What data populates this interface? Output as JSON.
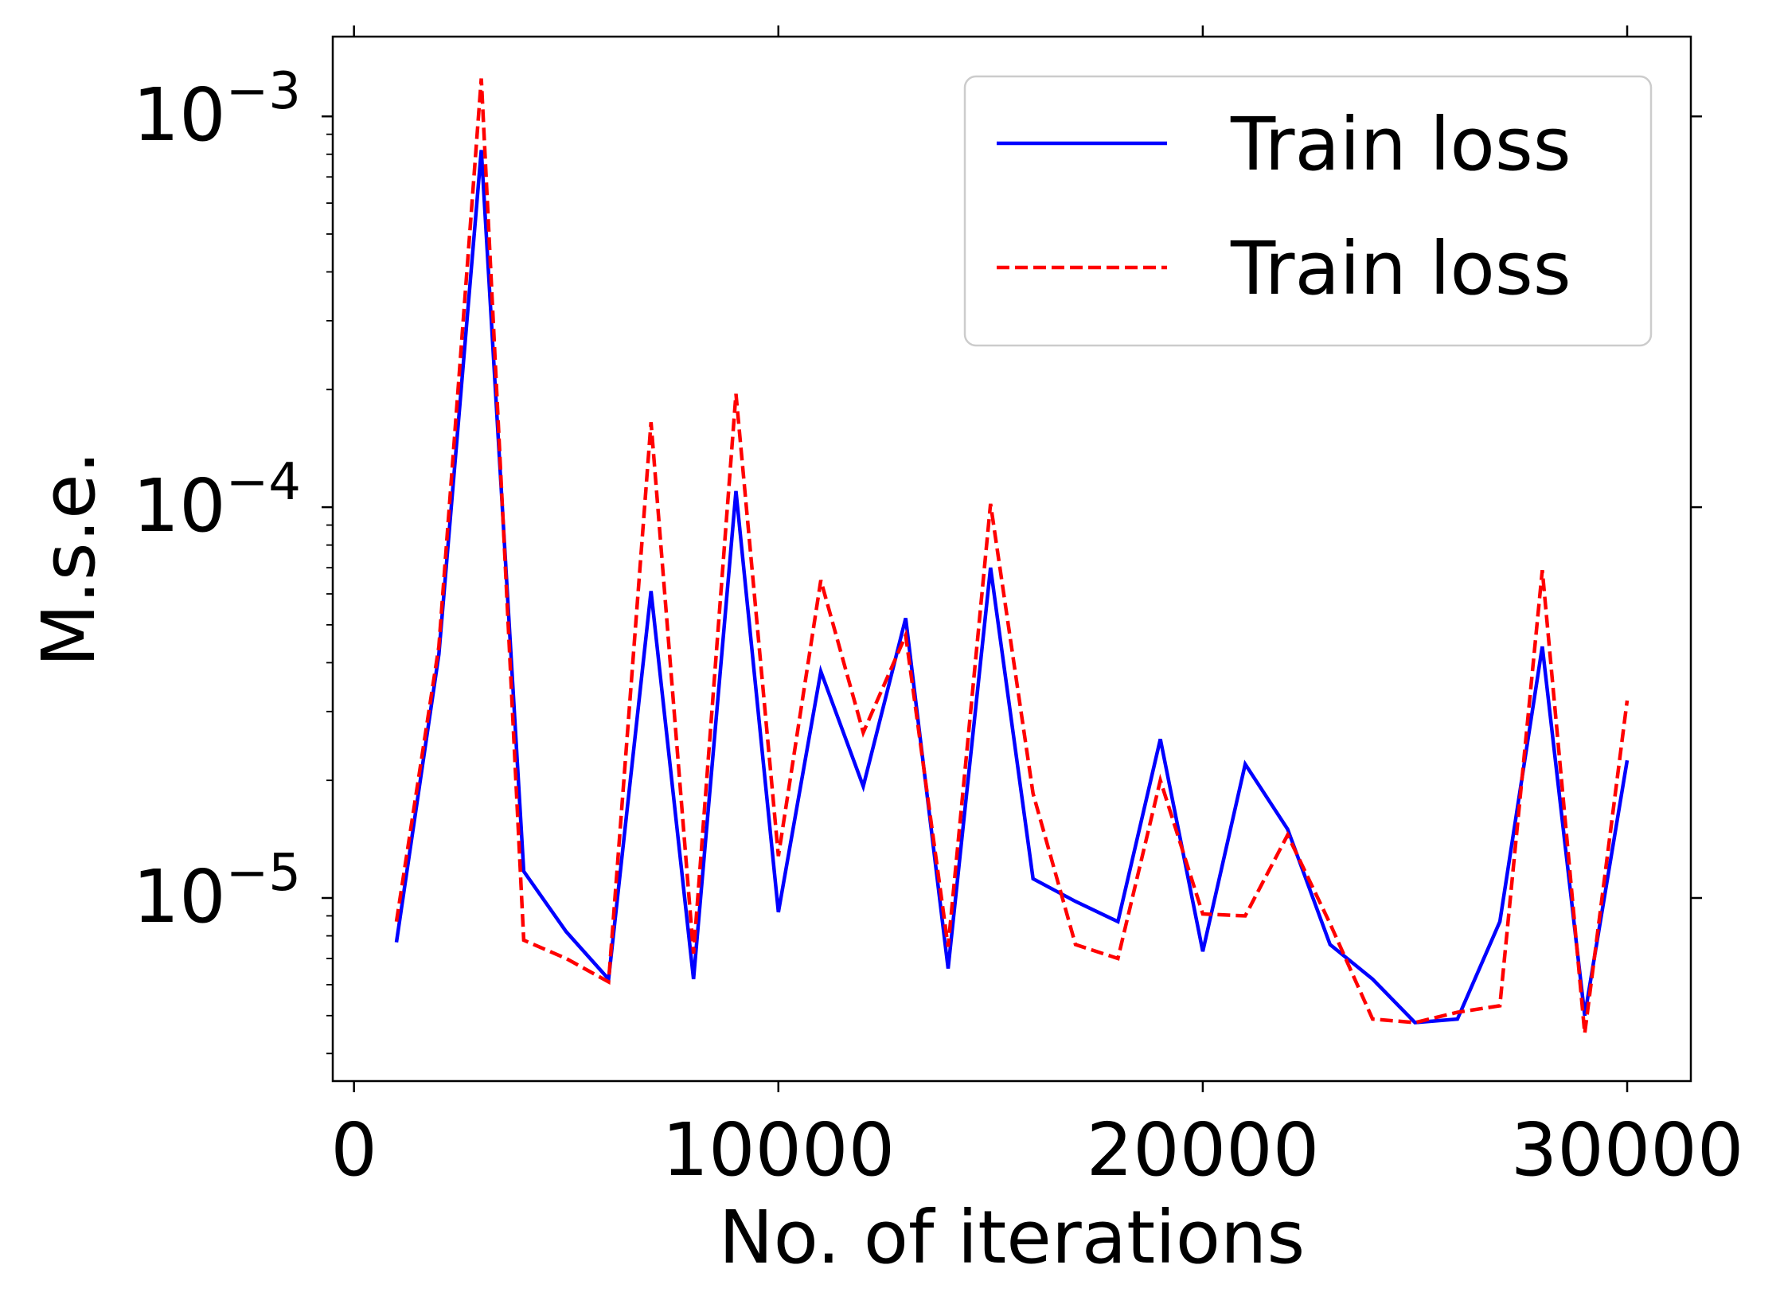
{
  "chart_data": {
    "type": "line",
    "xlabel": "No. of iterations",
    "ylabel": "M.s.e.",
    "xlim": [
      -500,
      31500
    ],
    "ylim": [
      3.4e-06,
      0.0016
    ],
    "yscale": "log",
    "grid": false,
    "legend_position": "top-right",
    "x_ticks": [
      0,
      10000,
      20000,
      30000
    ],
    "x_tick_labels": [
      "0",
      "10000",
      "20000",
      "30000"
    ],
    "y_ticks": [
      1e-05,
      0.0001,
      0.001
    ],
    "y_tick_labels": [
      {
        "base": "10",
        "exp": "−5"
      },
      {
        "base": "10",
        "exp": "−4"
      },
      {
        "base": "10",
        "exp": "−3"
      }
    ],
    "x": [
      1000,
      2000,
      3000,
      4000,
      5000,
      6000,
      7000,
      8000,
      9000,
      10000,
      11000,
      12000,
      13000,
      14000,
      15000,
      16000,
      17000,
      18000,
      19000,
      20000,
      21000,
      22000,
      23000,
      24000,
      25000,
      26000,
      27000,
      28000,
      29000,
      30000
    ],
    "series": [
      {
        "name": "Train loss",
        "color": "#0000ff",
        "dash": "solid",
        "values": [
          7.7e-06,
          4.2e-05,
          0.00082,
          1.17e-05,
          8.2e-06,
          6.2e-06,
          6.1e-05,
          6.2e-06,
          0.00011,
          9.2e-06,
          3.8e-05,
          1.93e-05,
          5.2e-05,
          6.6e-06,
          7e-05,
          1.12e-05,
          9.8e-06,
          8.7e-06,
          2.55e-05,
          7.3e-06,
          2.2e-05,
          1.5e-05,
          7.6e-06,
          6.2e-06,
          4.8e-06,
          4.9e-06,
          8.7e-06,
          4.4e-05,
          5e-06,
          2.25e-05
        ]
      },
      {
        "name": "Train loss",
        "color": "#ff0000",
        "dash": "dashed",
        "values": [
          8.7e-06,
          4.4e-05,
          0.00125,
          7.8e-06,
          7e-06,
          6.1e-06,
          0.000165,
          7.2e-06,
          0.000195,
          1.28e-05,
          6.5e-05,
          2.65e-05,
          4.7e-05,
          7.5e-06,
          0.000102,
          1.85e-05,
          7.6e-06,
          7e-06,
          2e-05,
          9.1e-06,
          9e-06,
          1.45e-05,
          8.6e-06,
          4.9e-06,
          4.8e-06,
          5.1e-06,
          5.3e-06,
          6.9e-05,
          4.5e-06,
          3.2e-05
        ]
      }
    ]
  }
}
